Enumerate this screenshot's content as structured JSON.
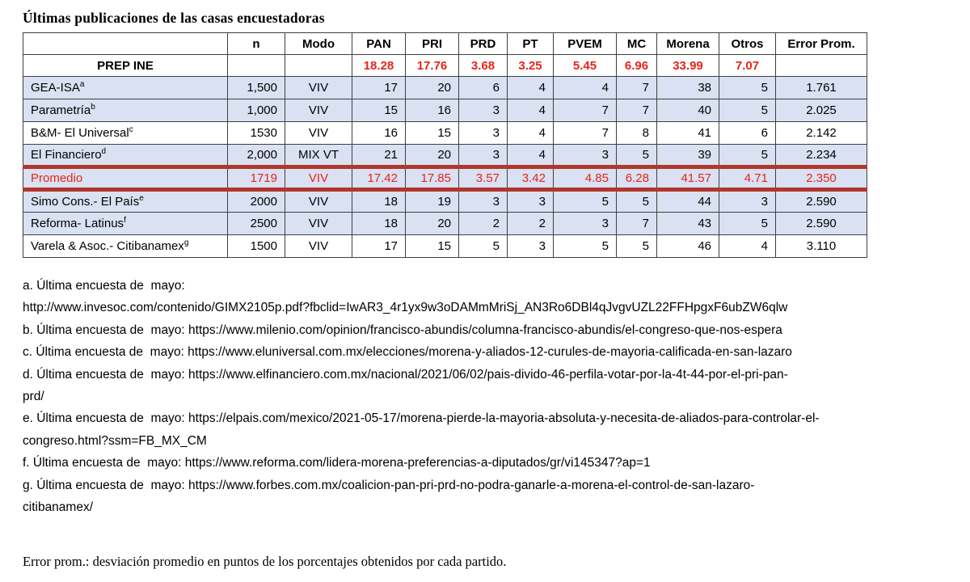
{
  "page": {
    "title": "Últimas publicaciones de las casas encuestadoras",
    "footer_note": "Error prom.: desviación promedio en puntos de los porcentajes obtenidos por cada partido."
  },
  "colors": {
    "row_shade": "#d9e1f2",
    "grid": "#3f3f3f",
    "red_text": "#e8241a",
    "promedio_border": "#b1372c"
  },
  "table": {
    "headers": [
      "",
      "n",
      "Modo",
      "PAN",
      "PRI",
      "PRD",
      "PT",
      "PVEM",
      "MC",
      "Morena",
      "Otros",
      "Error Prom."
    ],
    "prep_row": {
      "label": "PREP INE",
      "n": "",
      "modo": "",
      "values": [
        "18.28",
        "17.76",
        "3.68",
        "3.25",
        "5.45",
        "6.96",
        "33.99",
        "7.07"
      ],
      "error": ""
    },
    "rows": [
      {
        "name": "GEA-ISA",
        "sup": "a",
        "n": "1,500",
        "modo": "VIV",
        "values": [
          "17",
          "20",
          "6",
          "4",
          "4",
          "7",
          "38",
          "5"
        ],
        "error": "1.761",
        "shaded": true,
        "promedio": false
      },
      {
        "name": "Parametría",
        "sup": "b",
        "n": "1,000",
        "modo": "VIV",
        "values": [
          "15",
          "16",
          "3",
          "4",
          "7",
          "7",
          "40",
          "5"
        ],
        "error": "2.025",
        "shaded": true,
        "promedio": false
      },
      {
        "name": "B&M- El Universal",
        "sup": "c",
        "n": "1530",
        "modo": "VIV",
        "values": [
          "16",
          "15",
          "3",
          "4",
          "7",
          "8",
          "41",
          "6"
        ],
        "error": "2.142",
        "shaded": false,
        "promedio": false
      },
      {
        "name": "El Financiero",
        "sup": "d",
        "n": "2,000",
        "modo": "MIX VT",
        "values": [
          "21",
          "20",
          "3",
          "4",
          "3",
          "5",
          "39",
          "5"
        ],
        "error": "2.234",
        "shaded": true,
        "promedio": false
      },
      {
        "name": "Promedio",
        "sup": "",
        "n": "1719",
        "modo": "VIV",
        "values": [
          "17.42",
          "17.85",
          "3.57",
          "3.42",
          "4.85",
          "6.28",
          "41.57",
          "4.71"
        ],
        "error": "2.350",
        "shaded": true,
        "promedio": true
      },
      {
        "name": "Simo Cons.- El País",
        "sup": "e",
        "n": "2000",
        "modo": "VIV",
        "values": [
          "18",
          "19",
          "3",
          "3",
          "5",
          "5",
          "44",
          "3"
        ],
        "error": "2.590",
        "shaded": true,
        "promedio": false
      },
      {
        "name": "Reforma- Latinus",
        "sup": "f",
        "n": "2500",
        "modo": "VIV",
        "values": [
          "18",
          "20",
          "2",
          "2",
          "3",
          "7",
          "43",
          "5"
        ],
        "error": "2.590",
        "shaded": true,
        "promedio": false
      },
      {
        "name": "Varela & Asoc.- Citibanamex",
        "sup": "g",
        "n": "1500",
        "modo": "VIV",
        "values": [
          "17",
          "15",
          "5",
          "3",
          "5",
          "5",
          "46",
          "4"
        ],
        "error": "3.110",
        "shaded": false,
        "promedio": false
      }
    ]
  },
  "footnotes": [
    [
      "a. Última encuesta de  mayo:",
      "http://www.invesoc.com/contenido/GIMX2105p.pdf?fbclid=IwAR3_4r1yx9w3oDAMmMriSj_AN3Ro6DBl4qJvgvUZL22FFHpgxF6ubZW6qlw"
    ],
    [
      "b. Última encuesta de  mayo: https://www.milenio.com/opinion/francisco-abundis/columna-francisco-abundis/el-congreso-que-nos-espera"
    ],
    [
      "c. Última encuesta de  mayo: https://www.eluniversal.com.mx/elecciones/morena-y-aliados-12-curules-de-mayoria-calificada-en-san-lazaro"
    ],
    [
      "d. Última encuesta de  mayo: https://www.elfinanciero.com.mx/nacional/2021/06/02/pais-divido-46-perfila-votar-por-la-4t-44-por-el-pri-pan-",
      "prd/"
    ],
    [
      "e. Última encuesta de  mayo: https://elpais.com/mexico/2021-05-17/morena-pierde-la-mayoria-absoluta-y-necesita-de-aliados-para-controlar-el-",
      "congreso.html?ssm=FB_MX_CM"
    ],
    [
      "f. Última encuesta de  mayo: https://www.reforma.com/lidera-morena-preferencias-a-diputados/gr/vi145347?ap=1"
    ],
    [
      "g. Última encuesta de  mayo: https://www.forbes.com.mx/coalicion-pan-pri-prd-no-podra-ganarle-a-morena-el-control-de-san-lazaro-",
      "citibanamex/"
    ]
  ]
}
